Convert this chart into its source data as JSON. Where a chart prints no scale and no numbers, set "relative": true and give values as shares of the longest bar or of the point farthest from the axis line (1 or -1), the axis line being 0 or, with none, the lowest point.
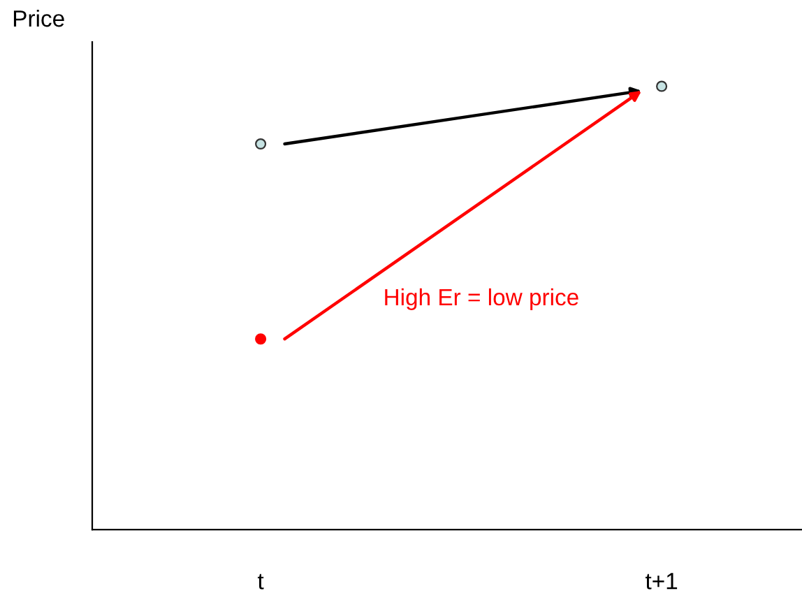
{
  "chart_data": {
    "type": "scatter",
    "relative": true,
    "ylabel": "Price",
    "categories": [
      "t",
      "t+1"
    ],
    "series": [
      {
        "color": "#c6e3e3",
        "values": [
          0.87,
          1
        ]
      },
      {
        "color": "#ff0000",
        "values": [
          0.43,
          null
        ]
      }
    ],
    "annotations": [
      "High Er = low price"
    ],
    "grid": false,
    "legend": false,
    "marker": "circle"
  }
}
